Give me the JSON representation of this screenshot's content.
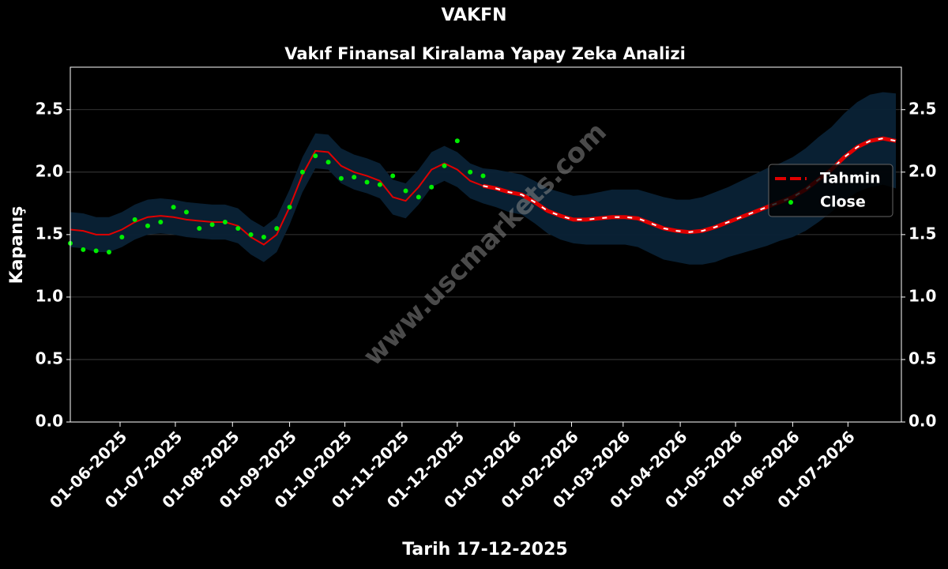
{
  "chart_data": {
    "type": "line",
    "title": "VAKFN",
    "subtitle": "Vakıf Finansal Kiralama Yapay Zeka Analizi",
    "xlabel": "Tarih 17-12-2025",
    "ylabel": "Kapanış",
    "watermark": "www.uscmarkets.com",
    "x": [
      "2025-05-05",
      "2025-05-12",
      "2025-05-19",
      "2025-05-26",
      "2025-06-02",
      "2025-06-09",
      "2025-06-16",
      "2025-06-23",
      "2025-06-30",
      "2025-07-07",
      "2025-07-14",
      "2025-07-21",
      "2025-07-28",
      "2025-08-04",
      "2025-08-11",
      "2025-08-18",
      "2025-08-25",
      "2025-09-01",
      "2025-09-08",
      "2025-09-15",
      "2025-09-22",
      "2025-09-29",
      "2025-10-06",
      "2025-10-13",
      "2025-10-20",
      "2025-10-27",
      "2025-11-03",
      "2025-11-10",
      "2025-11-17",
      "2025-11-24",
      "2025-12-01",
      "2025-12-08",
      "2025-12-15",
      "2025-12-22",
      "2025-12-29",
      "2026-01-05",
      "2026-01-12",
      "2026-01-19",
      "2026-01-26",
      "2026-02-02",
      "2026-02-09",
      "2026-02-16",
      "2026-02-23",
      "2026-03-02",
      "2026-03-09",
      "2026-03-16",
      "2026-03-23",
      "2026-03-30",
      "2026-04-06",
      "2026-04-13",
      "2026-04-20",
      "2026-04-27",
      "2026-05-04",
      "2026-05-11",
      "2026-05-18",
      "2026-05-25",
      "2026-06-01",
      "2026-06-08",
      "2026-06-15",
      "2026-06-22",
      "2026-06-29",
      "2026-07-06",
      "2026-07-13",
      "2026-07-20",
      "2026-07-27"
    ],
    "series": [
      {
        "name": "Tahmin",
        "color": "#e00000",
        "forecast_dash_color": "#ffffff",
        "forecast_start": "2025-12-15",
        "values": [
          1.54,
          1.53,
          1.5,
          1.5,
          1.54,
          1.6,
          1.64,
          1.65,
          1.64,
          1.62,
          1.61,
          1.6,
          1.6,
          1.57,
          1.48,
          1.42,
          1.5,
          1.72,
          1.98,
          2.17,
          2.16,
          2.05,
          2.0,
          1.97,
          1.93,
          1.8,
          1.77,
          1.88,
          2.02,
          2.07,
          2.02,
          1.93,
          1.89,
          1.87,
          1.84,
          1.82,
          1.76,
          1.69,
          1.65,
          1.62,
          1.62,
          1.63,
          1.64,
          1.64,
          1.63,
          1.59,
          1.55,
          1.53,
          1.52,
          1.53,
          1.56,
          1.6,
          1.64,
          1.68,
          1.72,
          1.76,
          1.8,
          1.86,
          1.94,
          2.02,
          2.12,
          2.2,
          2.25,
          2.27,
          2.25
        ]
      },
      {
        "name": "Close",
        "color": "#00ee00",
        "marker": "dot",
        "values": [
          1.43,
          1.38,
          1.37,
          1.36,
          1.48,
          1.62,
          1.57,
          1.6,
          1.72,
          1.68,
          1.55,
          1.58,
          1.6,
          1.55,
          1.5,
          1.48,
          1.55,
          1.72,
          2.0,
          2.13,
          2.08,
          1.95,
          1.96,
          1.92,
          1.9,
          1.97,
          1.85,
          1.8,
          1.88,
          2.05,
          2.25,
          2.0,
          1.97,
          null,
          null,
          null,
          null,
          null,
          null,
          null,
          null,
          null,
          null,
          null,
          null,
          null,
          null,
          null,
          null,
          null,
          null,
          null,
          null,
          null,
          null,
          null,
          null,
          null,
          null,
          null,
          null,
          null,
          null,
          null,
          null
        ]
      }
    ],
    "band": {
      "color": "#0a2236",
      "upper": [
        1.68,
        1.67,
        1.64,
        1.64,
        1.68,
        1.74,
        1.78,
        1.79,
        1.78,
        1.76,
        1.75,
        1.74,
        1.74,
        1.71,
        1.62,
        1.56,
        1.64,
        1.86,
        2.12,
        2.31,
        2.3,
        2.19,
        2.14,
        2.11,
        2.07,
        1.94,
        1.91,
        2.02,
        2.16,
        2.21,
        2.16,
        2.07,
        2.03,
        2.02,
        2.0,
        1.98,
        1.93,
        1.87,
        1.84,
        1.81,
        1.82,
        1.84,
        1.86,
        1.86,
        1.86,
        1.83,
        1.8,
        1.78,
        1.78,
        1.8,
        1.84,
        1.88,
        1.93,
        1.98,
        2.03,
        2.07,
        2.12,
        2.19,
        2.28,
        2.36,
        2.47,
        2.56,
        2.62,
        2.64,
        2.63
      ],
      "lower": [
        1.4,
        1.39,
        1.36,
        1.36,
        1.4,
        1.46,
        1.5,
        1.51,
        1.5,
        1.48,
        1.47,
        1.46,
        1.46,
        1.43,
        1.34,
        1.28,
        1.36,
        1.58,
        1.84,
        2.03,
        2.02,
        1.91,
        1.86,
        1.83,
        1.79,
        1.66,
        1.63,
        1.74,
        1.88,
        1.93,
        1.88,
        1.79,
        1.75,
        1.72,
        1.68,
        1.66,
        1.59,
        1.51,
        1.46,
        1.43,
        1.42,
        1.42,
        1.42,
        1.42,
        1.4,
        1.35,
        1.3,
        1.28,
        1.26,
        1.26,
        1.28,
        1.32,
        1.35,
        1.38,
        1.41,
        1.45,
        1.48,
        1.53,
        1.6,
        1.68,
        1.77,
        1.84,
        1.88,
        1.9,
        1.87
      ]
    },
    "xlim": [
      "2025-05-05",
      "2026-07-30"
    ],
    "xticks": [
      {
        "value": "2025-06-01",
        "label": "01-06-2025"
      },
      {
        "value": "2025-07-01",
        "label": "01-07-2025"
      },
      {
        "value": "2025-08-01",
        "label": "01-08-2025"
      },
      {
        "value": "2025-09-01",
        "label": "01-09-2025"
      },
      {
        "value": "2025-10-01",
        "label": "01-10-2025"
      },
      {
        "value": "2025-11-01",
        "label": "01-11-2025"
      },
      {
        "value": "2025-12-01",
        "label": "01-12-2025"
      },
      {
        "value": "2026-01-01",
        "label": "01-01-2026"
      },
      {
        "value": "2026-02-01",
        "label": "01-02-2026"
      },
      {
        "value": "2026-03-01",
        "label": "01-03-2026"
      },
      {
        "value": "2026-04-01",
        "label": "01-04-2026"
      },
      {
        "value": "2026-05-01",
        "label": "01-05-2026"
      },
      {
        "value": "2026-06-01",
        "label": "01-06-2026"
      },
      {
        "value": "2026-07-01",
        "label": "01-07-2026"
      }
    ],
    "ylim": [
      0,
      2.84
    ],
    "yticks": [
      {
        "value": 0,
        "label": "0.0"
      },
      {
        "value": 0.5,
        "label": "0.5"
      },
      {
        "value": 1,
        "label": "1.0"
      },
      {
        "value": 1.5,
        "label": "1.5"
      },
      {
        "value": 2,
        "label": "2.0"
      },
      {
        "value": 2.5,
        "label": "2.5"
      }
    ],
    "grid": true,
    "legend": "upper right"
  }
}
